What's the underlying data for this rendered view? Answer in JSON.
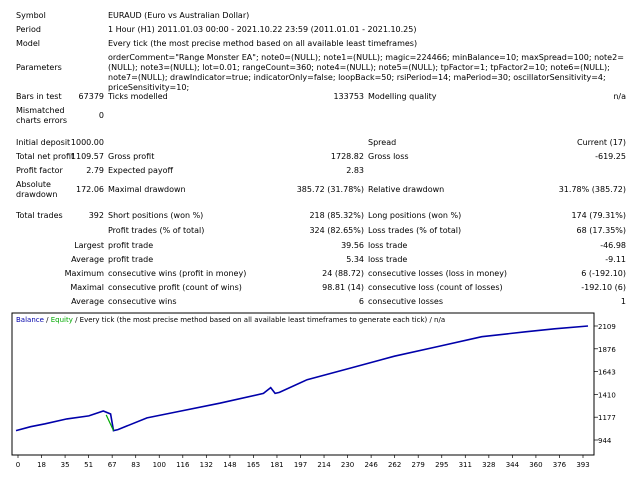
{
  "report": {
    "symbol_label": "Symbol",
    "symbol_value": "EURAUD (Euro vs Australian Dollar)",
    "period_label": "Period",
    "period_value": "1 Hour (H1) 2011.01.03 00:00 - 2021.10.22 23:59 (2011.01.01 - 2021.10.25)",
    "model_label": "Model",
    "model_value": "Every tick (the most precise method based on all available least timeframes)",
    "parameters_label": "Parameters",
    "parameters_value": "orderComment=\"Range Monster EA\"; note0=(NULL); note1=(NULL); magic=224466; minBalance=10; maxSpread=100; note2=(NULL); note3=(NULL); lot=0.01; rangeCount=360; note4=(NULL); note5=(NULL); tpFactor=1; tpFactor2=10; note6=(NULL); note7=(NULL); drawIndicator=true; indicatorOnly=false; loopBack=50; rsiPeriod=14; maPeriod=30; oscillatorSensitivity=4; priceSensitivity=10;",
    "bars_label": "Bars in test",
    "bars_value": "67379",
    "ticks_label": "Ticks modelled",
    "ticks_value": "133753",
    "quality_label": "Modelling quality",
    "quality_value": "n/a",
    "mismatched_label": "Mismatched charts errors",
    "mismatched_value": "0",
    "initial_deposit_label": "Initial deposit",
    "initial_deposit_value": "1000.00",
    "spread_label": "Spread",
    "spread_value": "Current (17)",
    "net_profit_label": "Total net profit",
    "net_profit_value": "1109.57",
    "gross_profit_label": "Gross profit",
    "gross_profit_value": "1728.82",
    "gross_loss_label": "Gross loss",
    "gross_loss_value": "-619.25",
    "profit_factor_label": "Profit factor",
    "profit_factor_value": "2.79",
    "expected_payoff_label": "Expected payoff",
    "expected_payoff_value": "2.83",
    "abs_drawdown_label": "Absolute drawdown",
    "abs_drawdown_value": "172.06",
    "max_drawdown_label": "Maximal drawdown",
    "max_drawdown_value": "385.72 (31.78%)",
    "rel_drawdown_label": "Relative drawdown",
    "rel_drawdown_value": "31.78% (385.72)",
    "total_trades_label": "Total trades",
    "total_trades_value": "392",
    "short_label": "Short positions (won %)",
    "short_value": "218 (85.32%)",
    "long_label": "Long positions (won %)",
    "long_value": "174 (79.31%)",
    "profit_trades_label": "Profit trades (% of total)",
    "profit_trades_value": "324 (82.65%)",
    "loss_trades_label": "Loss trades (% of total)",
    "loss_trades_value": "68 (17.35%)",
    "largest_label": "Largest",
    "largest_profit_label": "profit trade",
    "largest_profit_value": "39.56",
    "largest_loss_label": "loss trade",
    "largest_loss_value": "-46.98",
    "average_label": "Average",
    "average_profit_label": "profit trade",
    "average_profit_value": "5.34",
    "average_loss_label": "loss trade",
    "average_loss_value": "-9.11",
    "maximum_label": "Maximum",
    "max_cons_wins_label": "consecutive wins (profit in money)",
    "max_cons_wins_value": "24 (88.72)",
    "max_cons_losses_label": "consecutive losses (loss in money)",
    "max_cons_losses_value": "6 (-192.10)",
    "maximal_label": "Maximal",
    "maximal_cons_profit_label": "consecutive profit (count of wins)",
    "maximal_cons_profit_value": "98.81 (14)",
    "maximal_cons_loss_label": "consecutive loss (count of losses)",
    "maximal_cons_loss_value": "-192.10 (6)",
    "average2_label": "Average",
    "avg_cons_wins_label": "consecutive wins",
    "avg_cons_wins_value": "6",
    "avg_cons_losses_label": "consecutive losses",
    "avg_cons_losses_value": "1"
  },
  "chart_data": {
    "type": "line",
    "legend_balance": "Balance",
    "legend_sep1": " / ",
    "legend_equity": "Equity",
    "legend_rest": " / Every tick (the most precise method based on all available least timeframes to generate each tick) / n/a",
    "yticks": [
      "2109",
      "1876",
      "1643",
      "1410",
      "1177",
      "944"
    ],
    "xticks": [
      "0",
      "18",
      "35",
      "51",
      "67",
      "83",
      "100",
      "116",
      "132",
      "148",
      "165",
      "181",
      "197",
      "214",
      "230",
      "246",
      "262",
      "279",
      "295",
      "311",
      "328",
      "344",
      "360",
      "376",
      "393"
    ],
    "ylim": [
      944,
      2109
    ],
    "xlim": [
      0,
      393
    ],
    "series": [
      {
        "name": "Balance",
        "color": "#0000aa",
        "x": [
          0,
          10,
          20,
          35,
          50,
          60,
          65,
          67,
          70,
          90,
          110,
          140,
          170,
          175,
          178,
          181,
          200,
          230,
          260,
          290,
          320,
          350,
          370,
          393
        ],
        "values": [
          1040,
          1080,
          1110,
          1160,
          1190,
          1240,
          1210,
          1040,
          1050,
          1170,
          1230,
          1320,
          1420,
          1480,
          1420,
          1430,
          1560,
          1680,
          1800,
          1900,
          2000,
          2050,
          2080,
          2109
        ]
      },
      {
        "name": "Equity",
        "color": "#00aa00",
        "x": [
          62,
          67
        ],
        "values": [
          1200,
          1040
        ]
      }
    ],
    "colors": {
      "balance": "#0000aa",
      "equity": "#00aa00",
      "axis": "#000000",
      "legend_text": "#000000"
    }
  }
}
